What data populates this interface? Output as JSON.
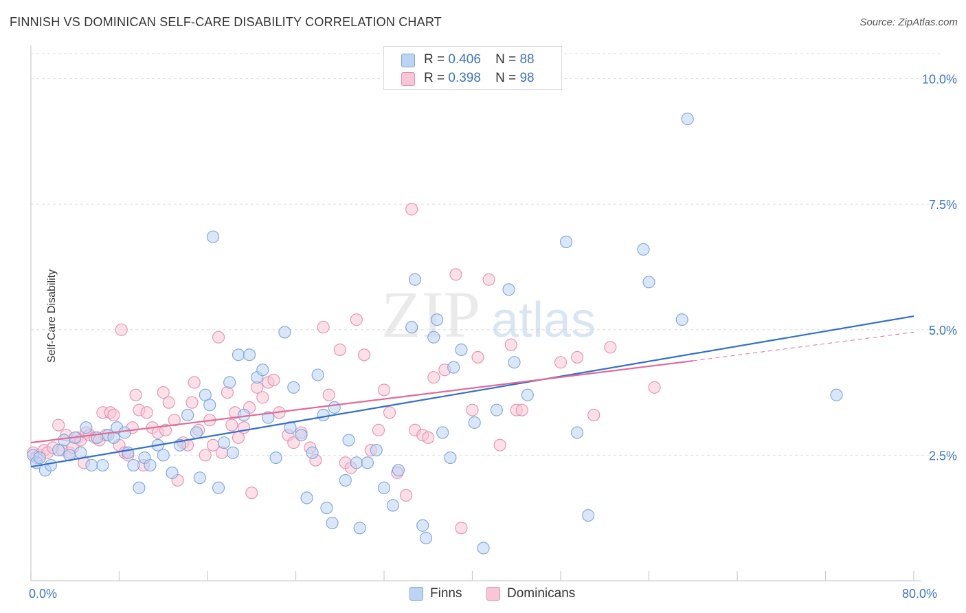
{
  "title": "FINNISH VS DOMINICAN SELF-CARE DISABILITY CORRELATION CHART",
  "source": "Source: ZipAtlas.com",
  "watermark": {
    "zip": "ZIP",
    "atlas": "atlas"
  },
  "colors": {
    "finns_fill": "#bcd4f3",
    "finns_stroke": "#7aa4dc",
    "finns_line": "#2f6fd0",
    "dom_fill": "#f8c6d6",
    "dom_stroke": "#e78fae",
    "dom_line": "#e36a96",
    "tick_label": "#3b73c6",
    "grid": "#dddddd"
  },
  "legend": {
    "rows": [
      {
        "r_label": "R =",
        "r_value": "0.406",
        "n_label": "N =",
        "n_value": "88"
      },
      {
        "r_label": "R =",
        "r_value": "0.398",
        "n_label": "N =",
        "n_value": "98"
      }
    ]
  },
  "chart_data": {
    "type": "scatter",
    "title": "FINNISH VS DOMINICAN SELF-CARE DISABILITY CORRELATION CHART",
    "xlabel": "",
    "ylabel": "Self-Care Disability",
    "xlim": [
      0,
      80
    ],
    "ylim": [
      0,
      10.5
    ],
    "x_tick_labels": [
      {
        "value": 0,
        "label": "0.0%"
      },
      {
        "value": 80,
        "label": "80.0%"
      }
    ],
    "y_tick_labels": [
      {
        "value": 2.5,
        "label": "2.5%"
      },
      {
        "value": 5.0,
        "label": "5.0%"
      },
      {
        "value": 7.5,
        "label": "7.5%"
      },
      {
        "value": 10.0,
        "label": "10.0%"
      }
    ],
    "grid": true,
    "legend_position": "top-center",
    "series": [
      {
        "name": "Finns",
        "r": 0.406,
        "n": 88,
        "trend": {
          "x0": 0,
          "y0": 2.27,
          "x1": 80,
          "y1": 5.27
        },
        "points": [
          [
            0.2,
            2.5
          ],
          [
            0.5,
            2.35
          ],
          [
            0.8,
            2.45
          ],
          [
            1.3,
            2.2
          ],
          [
            1.8,
            2.3
          ],
          [
            2.5,
            2.6
          ],
          [
            3.0,
            2.8
          ],
          [
            3.5,
            2.5
          ],
          [
            4.0,
            2.85
          ],
          [
            4.5,
            2.55
          ],
          [
            5.0,
            3.05
          ],
          [
            5.5,
            2.3
          ],
          [
            6.0,
            2.85
          ],
          [
            6.5,
            2.3
          ],
          [
            7.0,
            2.9
          ],
          [
            7.5,
            2.85
          ],
          [
            7.8,
            3.05
          ],
          [
            8.5,
            2.95
          ],
          [
            8.8,
            2.55
          ],
          [
            9.3,
            2.3
          ],
          [
            9.8,
            1.85
          ],
          [
            10.3,
            2.45
          ],
          [
            10.8,
            2.3
          ],
          [
            11.5,
            2.7
          ],
          [
            12.0,
            2.5
          ],
          [
            12.8,
            2.15
          ],
          [
            13.5,
            2.7
          ],
          [
            14.2,
            3.3
          ],
          [
            15.0,
            2.95
          ],
          [
            15.3,
            2.05
          ],
          [
            15.8,
            3.7
          ],
          [
            16.2,
            3.5
          ],
          [
            16.5,
            6.85
          ],
          [
            17.0,
            1.85
          ],
          [
            17.5,
            2.75
          ],
          [
            18.0,
            3.95
          ],
          [
            18.3,
            2.55
          ],
          [
            18.8,
            4.5
          ],
          [
            19.3,
            3.3
          ],
          [
            19.8,
            4.5
          ],
          [
            20.5,
            4.05
          ],
          [
            21.0,
            4.2
          ],
          [
            21.5,
            3.25
          ],
          [
            22.2,
            2.45
          ],
          [
            23.0,
            4.95
          ],
          [
            23.5,
            3.05
          ],
          [
            23.8,
            3.85
          ],
          [
            24.5,
            2.9
          ],
          [
            25.0,
            1.65
          ],
          [
            25.5,
            2.55
          ],
          [
            26.0,
            4.1
          ],
          [
            26.5,
            3.3
          ],
          [
            26.8,
            1.45
          ],
          [
            27.3,
            1.15
          ],
          [
            27.5,
            3.45
          ],
          [
            28.5,
            2.0
          ],
          [
            28.8,
            2.8
          ],
          [
            29.5,
            2.35
          ],
          [
            29.8,
            1.05
          ],
          [
            30.5,
            2.35
          ],
          [
            31.3,
            2.6
          ],
          [
            32.0,
            1.85
          ],
          [
            32.8,
            1.5
          ],
          [
            33.3,
            2.2
          ],
          [
            34.5,
            5.05
          ],
          [
            34.8,
            6.0
          ],
          [
            35.5,
            1.1
          ],
          [
            35.8,
            0.85
          ],
          [
            36.5,
            4.85
          ],
          [
            36.8,
            5.2
          ],
          [
            37.3,
            2.95
          ],
          [
            38.0,
            2.45
          ],
          [
            38.3,
            4.25
          ],
          [
            39.0,
            4.6
          ],
          [
            40.2,
            3.15
          ],
          [
            41.0,
            0.65
          ],
          [
            42.2,
            3.4
          ],
          [
            43.3,
            5.8
          ],
          [
            43.8,
            4.35
          ],
          [
            45.0,
            3.7
          ],
          [
            48.5,
            6.75
          ],
          [
            49.5,
            2.95
          ],
          [
            50.5,
            1.3
          ],
          [
            55.5,
            6.6
          ],
          [
            56.0,
            5.95
          ],
          [
            59.0,
            5.2
          ],
          [
            59.5,
            9.2
          ],
          [
            73.0,
            3.7
          ]
        ]
      },
      {
        "name": "Dominicans",
        "r": 0.398,
        "n": 98,
        "trend": {
          "x0": 0,
          "y0": 2.75,
          "x1": 60,
          "y1": 4.38
        },
        "trend_extension": {
          "x0": 60,
          "y0": 4.38,
          "x1": 80,
          "y1": 4.95
        },
        "points": [
          [
            0.2,
            2.55
          ],
          [
            0.5,
            2.45
          ],
          [
            0.8,
            2.5
          ],
          [
            1.2,
            2.6
          ],
          [
            1.5,
            2.55
          ],
          [
            2.0,
            2.65
          ],
          [
            2.5,
            3.1
          ],
          [
            2.8,
            2.6
          ],
          [
            3.2,
            2.9
          ],
          [
            3.5,
            2.55
          ],
          [
            3.8,
            2.65
          ],
          [
            4.2,
            2.85
          ],
          [
            4.5,
            2.8
          ],
          [
            4.8,
            2.35
          ],
          [
            5.0,
            2.95
          ],
          [
            5.3,
            2.9
          ],
          [
            5.8,
            2.85
          ],
          [
            6.2,
            2.8
          ],
          [
            6.5,
            3.35
          ],
          [
            6.8,
            2.9
          ],
          [
            7.2,
            3.35
          ],
          [
            7.5,
            3.3
          ],
          [
            8.0,
            2.7
          ],
          [
            8.2,
            5.0
          ],
          [
            8.5,
            2.55
          ],
          [
            8.8,
            2.5
          ],
          [
            9.2,
            3.05
          ],
          [
            9.5,
            3.7
          ],
          [
            9.8,
            3.4
          ],
          [
            10.2,
            2.3
          ],
          [
            10.5,
            3.35
          ],
          [
            11.0,
            3.05
          ],
          [
            11.5,
            2.95
          ],
          [
            12.0,
            3.75
          ],
          [
            12.2,
            3.0
          ],
          [
            12.5,
            3.55
          ],
          [
            13.0,
            3.2
          ],
          [
            13.3,
            2.0
          ],
          [
            13.8,
            2.75
          ],
          [
            14.2,
            2.7
          ],
          [
            14.6,
            3.55
          ],
          [
            14.8,
            3.95
          ],
          [
            15.2,
            3.0
          ],
          [
            15.8,
            2.5
          ],
          [
            16.2,
            3.2
          ],
          [
            16.5,
            2.7
          ],
          [
            17.0,
            4.85
          ],
          [
            17.3,
            2.55
          ],
          [
            17.8,
            3.75
          ],
          [
            18.2,
            3.1
          ],
          [
            18.5,
            3.35
          ],
          [
            18.8,
            2.85
          ],
          [
            19.3,
            3.05
          ],
          [
            19.8,
            3.45
          ],
          [
            20.0,
            1.75
          ],
          [
            20.5,
            3.85
          ],
          [
            21.0,
            3.65
          ],
          [
            21.5,
            3.95
          ],
          [
            22.0,
            4.0
          ],
          [
            22.5,
            3.35
          ],
          [
            23.3,
            2.9
          ],
          [
            23.8,
            2.75
          ],
          [
            24.5,
            2.95
          ],
          [
            25.3,
            2.65
          ],
          [
            25.8,
            2.4
          ],
          [
            26.5,
            5.05
          ],
          [
            27.0,
            3.7
          ],
          [
            28.0,
            4.6
          ],
          [
            28.5,
            2.35
          ],
          [
            29.0,
            2.25
          ],
          [
            29.5,
            5.2
          ],
          [
            30.2,
            4.5
          ],
          [
            30.8,
            2.6
          ],
          [
            31.5,
            3.0
          ],
          [
            32.0,
            3.8
          ],
          [
            32.5,
            3.35
          ],
          [
            33.2,
            2.15
          ],
          [
            34.0,
            1.7
          ],
          [
            34.5,
            7.4
          ],
          [
            34.8,
            3.0
          ],
          [
            35.5,
            2.9
          ],
          [
            36.0,
            2.85
          ],
          [
            36.5,
            4.05
          ],
          [
            37.5,
            4.2
          ],
          [
            38.5,
            6.1
          ],
          [
            39.0,
            1.05
          ],
          [
            40.0,
            3.4
          ],
          [
            40.5,
            4.45
          ],
          [
            41.5,
            6.0
          ],
          [
            42.5,
            2.7
          ],
          [
            43.5,
            4.7
          ],
          [
            44.0,
            3.4
          ],
          [
            44.5,
            3.4
          ],
          [
            48.0,
            4.35
          ],
          [
            49.5,
            4.45
          ],
          [
            51.0,
            3.3
          ],
          [
            52.5,
            4.65
          ],
          [
            56.5,
            3.85
          ]
        ]
      }
    ]
  }
}
